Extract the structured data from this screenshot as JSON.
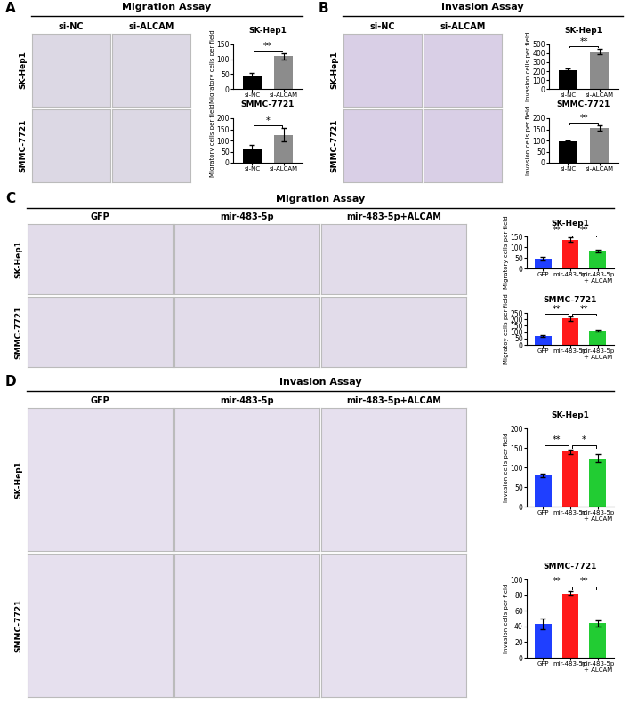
{
  "panels": [
    {
      "label": "A",
      "title": "Migration Assay",
      "columns": [
        "si-NC",
        "si-ALCAM"
      ],
      "rows": [
        "SK-Hep1",
        "SMMC-7721"
      ]
    },
    {
      "label": "B",
      "title": "Invasion Assay",
      "columns": [
        "si-NC",
        "si-ALCAM"
      ],
      "rows": [
        "SK-Hep1",
        "SMMC-7721"
      ]
    },
    {
      "label": "C",
      "title": "Migration Assay",
      "columns": [
        "GFP",
        "mir-483-5p",
        "mir-483-5p+ALCAM"
      ],
      "rows": [
        "SK-Hep1",
        "SMMC-7721"
      ]
    },
    {
      "label": "D",
      "title": "Invasion Assay",
      "columns": [
        "GFP",
        "mir-483-5p",
        "mir-483-5p+ALCAM"
      ],
      "rows": [
        "SK-Hep1",
        "SMMC-7721"
      ]
    }
  ],
  "chart_data": [
    {
      "type": "bar",
      "title": "SK-Hep1",
      "y_label": "Migratory cells per field",
      "categories": [
        "si-NC",
        "si-ALCAM"
      ],
      "values": [
        45,
        110
      ],
      "errors": [
        10,
        10
      ],
      "colors": [
        "#000000",
        "#8c8c8c"
      ],
      "ylim": [
        0,
        150
      ],
      "yticks": [
        0,
        50,
        100,
        150
      ],
      "annotations": [
        {
          "text": "**",
          "between": [
            "si-NC",
            "si-ALCAM"
          ]
        }
      ]
    },
    {
      "type": "bar",
      "title": "SMMC-7721",
      "y_label": "Migratory cells per field",
      "categories": [
        "si-NC",
        "si-ALCAM"
      ],
      "values": [
        60,
        125
      ],
      "errors": [
        20,
        30
      ],
      "colors": [
        "#000000",
        "#8c8c8c"
      ],
      "ylim": [
        0,
        200
      ],
      "yticks": [
        0,
        50,
        100,
        150,
        200
      ],
      "annotations": [
        {
          "text": "*",
          "between": [
            "si-NC",
            "si-ALCAM"
          ]
        }
      ]
    },
    {
      "type": "bar",
      "title": "SK-Hep1",
      "y_label": "Invasion cells per field",
      "categories": [
        "si-NC",
        "si-ALCAM"
      ],
      "values": [
        210,
        420
      ],
      "errors": [
        20,
        30
      ],
      "colors": [
        "#000000",
        "#8c8c8c"
      ],
      "ylim": [
        0,
        500
      ],
      "yticks": [
        0,
        100,
        200,
        300,
        400,
        500
      ],
      "annotations": [
        {
          "text": "**",
          "between": [
            "si-NC",
            "si-ALCAM"
          ]
        }
      ]
    },
    {
      "type": "bar",
      "title": "SMMC-7721",
      "y_label": "Invasion cells per field",
      "categories": [
        "si-NC",
        "si-ALCAM"
      ],
      "values": [
        95,
        155
      ],
      "errors": [
        5,
        12
      ],
      "colors": [
        "#000000",
        "#8c8c8c"
      ],
      "ylim": [
        0,
        200
      ],
      "yticks": [
        0,
        50,
        100,
        150,
        200
      ],
      "annotations": [
        {
          "text": "**",
          "between": [
            "si-NC",
            "si-ALCAM"
          ]
        }
      ]
    },
    {
      "type": "bar",
      "title": "SK-Hep1",
      "y_label": "Migratory cells per field",
      "categories": [
        "GFP",
        "mir-483-5p",
        "mir-483-5p + ALCAM"
      ],
      "values": [
        45,
        135,
        82
      ],
      "errors": [
        8,
        12,
        5
      ],
      "colors": [
        "#1f3fff",
        "#ff1a1a",
        "#22cc33"
      ],
      "ylim": [
        0,
        150
      ],
      "yticks": [
        0,
        50,
        100,
        150
      ],
      "annotations": [
        {
          "text": "**",
          "between": [
            "GFP",
            "mir-483-5p"
          ]
        },
        {
          "text": "**",
          "between": [
            "mir-483-5p",
            "mir-483-5p + ALCAM"
          ]
        }
      ]
    },
    {
      "type": "bar",
      "title": "SMMC-7721",
      "y_label": "Migratoy cells per field",
      "categories": [
        "GFP",
        "mir-483-5p",
        "mir-483-5p + ALCAM"
      ],
      "values": [
        70,
        205,
        112
      ],
      "errors": [
        5,
        20,
        5
      ],
      "colors": [
        "#1f3fff",
        "#ff1a1a",
        "#22cc33"
      ],
      "ylim": [
        0,
        250
      ],
      "yticks": [
        0,
        50,
        100,
        150,
        200,
        250
      ],
      "annotations": [
        {
          "text": "**",
          "between": [
            "GFP",
            "mir-483-5p"
          ]
        },
        {
          "text": "**",
          "between": [
            "mir-483-5p",
            "mir-483-5p + ALCAM"
          ]
        }
      ]
    },
    {
      "type": "bar",
      "title": "SK-Hep1",
      "y_label": "Invasion cells per field",
      "categories": [
        "GFP",
        "mir-483-5p",
        "mir-483-5p + ALCAM"
      ],
      "values": [
        80,
        140,
        123
      ],
      "errors": [
        5,
        5,
        10
      ],
      "colors": [
        "#1f3fff",
        "#ff1a1a",
        "#22cc33"
      ],
      "ylim": [
        0,
        200
      ],
      "yticks": [
        0,
        50,
        100,
        150,
        200
      ],
      "annotations": [
        {
          "text": "**",
          "between": [
            "GFP",
            "mir-483-5p"
          ]
        },
        {
          "text": "*",
          "between": [
            "mir-483-5p",
            "mir-483-5p + ALCAM"
          ]
        }
      ]
    },
    {
      "type": "bar",
      "title": "SMMC-7721",
      "y_label": "Invasion cells per field",
      "categories": [
        "GFP",
        "mir-483-5p",
        "mir-483-5p + ALCAM"
      ],
      "values": [
        43,
        82,
        44
      ],
      "errors": [
        7,
        3,
        4
      ],
      "colors": [
        "#1f3fff",
        "#ff1a1a",
        "#22cc33"
      ],
      "ylim": [
        0,
        100
      ],
      "yticks": [
        0,
        20,
        40,
        60,
        80,
        100
      ],
      "annotations": [
        {
          "text": "**",
          "between": [
            "GFP",
            "mir-483-5p"
          ]
        },
        {
          "text": "**",
          "between": [
            "mir-483-5p",
            "mir-483-5p + ALCAM"
          ]
        }
      ]
    }
  ]
}
